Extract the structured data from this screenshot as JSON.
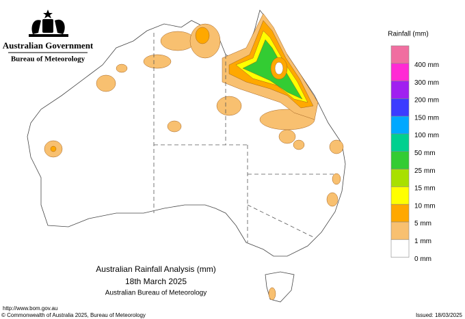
{
  "header": {
    "title": "Australian Government",
    "subtitle": "Bureau of Meteorology"
  },
  "legend": {
    "title": "Rainfall (mm)",
    "colors": [
      "#f06ea0",
      "#ff2ad4",
      "#a020f0",
      "#3c3cff",
      "#00a8ff",
      "#00d08f",
      "#33cc33",
      "#a8e000",
      "#ffff00",
      "#ffa800",
      "#f8c070",
      "#ffffff"
    ],
    "labels": [
      "400 mm",
      "300 mm",
      "200 mm",
      "150 mm",
      "100 mm",
      "50 mm",
      "25 mm",
      "15 mm",
      "10 mm",
      "5 mm",
      "1 mm",
      "0 mm"
    ]
  },
  "map_title": {
    "line1": "Australian Rainfall Analysis (mm)",
    "line2": "18th March 2025",
    "line3": "Australian Bureau of Meteorology"
  },
  "footer": {
    "url": "http://www.bom.gov.au",
    "copyright": "© Commonwealth of Australia 2025, Bureau of Meteorology",
    "issued": "Issued: 18/03/2025"
  }
}
